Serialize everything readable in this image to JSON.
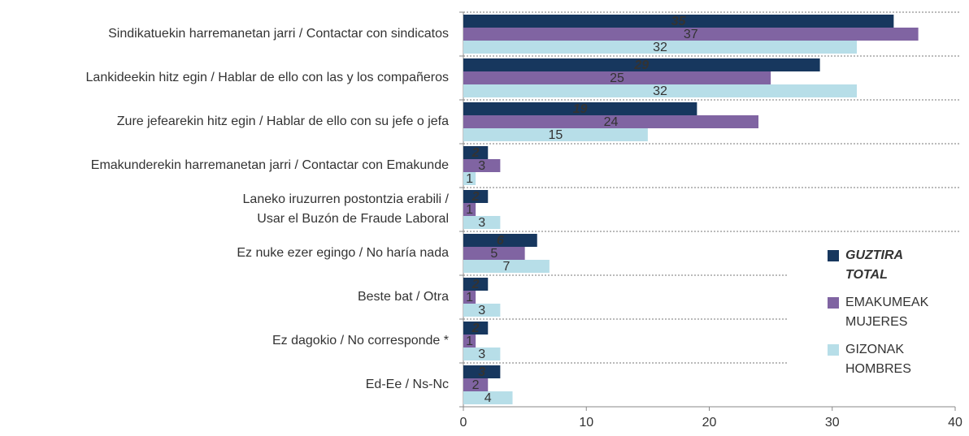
{
  "chart_data": {
    "type": "hbar",
    "categories": [
      [
        "Sindikatuekin harremanetan jarri / Contactar con sindicatos"
      ],
      [
        "Lankideekin hitz egin / Hablar de ello con las y los compañeros"
      ],
      [
        "Zure jefearekin hitz egin / Hablar de ello con su jefe o jefa"
      ],
      [
        "Emakunderekin harremanetan jarri / Contactar con Emakunde"
      ],
      [
        "Laneko iruzurren postontzia erabili /",
        "Usar el Buzón de Fraude Laboral"
      ],
      [
        "Ez nuke ezer egingo / No haría nada"
      ],
      [
        "Beste bat / Otra"
      ],
      [
        "Ez dagokio / No corresponde *"
      ],
      [
        "Ed-Ee / Ns-Nc"
      ]
    ],
    "series": [
      {
        "name": [
          "GUZTIRA",
          "TOTAL"
        ],
        "color": "#17375e",
        "values": [
          35,
          29,
          19,
          2,
          2,
          6,
          2,
          2,
          3
        ]
      },
      {
        "name": [
          "EMAKUMEAK",
          "MUJERES"
        ],
        "color": "#8064a2",
        "values": [
          37,
          25,
          24,
          3,
          1,
          5,
          1,
          1,
          2
        ]
      },
      {
        "name": [
          "GIZONAK",
          "HOMBRES"
        ],
        "color": "#b7dee8",
        "values": [
          32,
          32,
          15,
          1,
          3,
          7,
          3,
          3,
          4
        ]
      }
    ],
    "xlim": [
      0,
      40
    ],
    "xticks": [
      0,
      10,
      20,
      30,
      40
    ]
  }
}
